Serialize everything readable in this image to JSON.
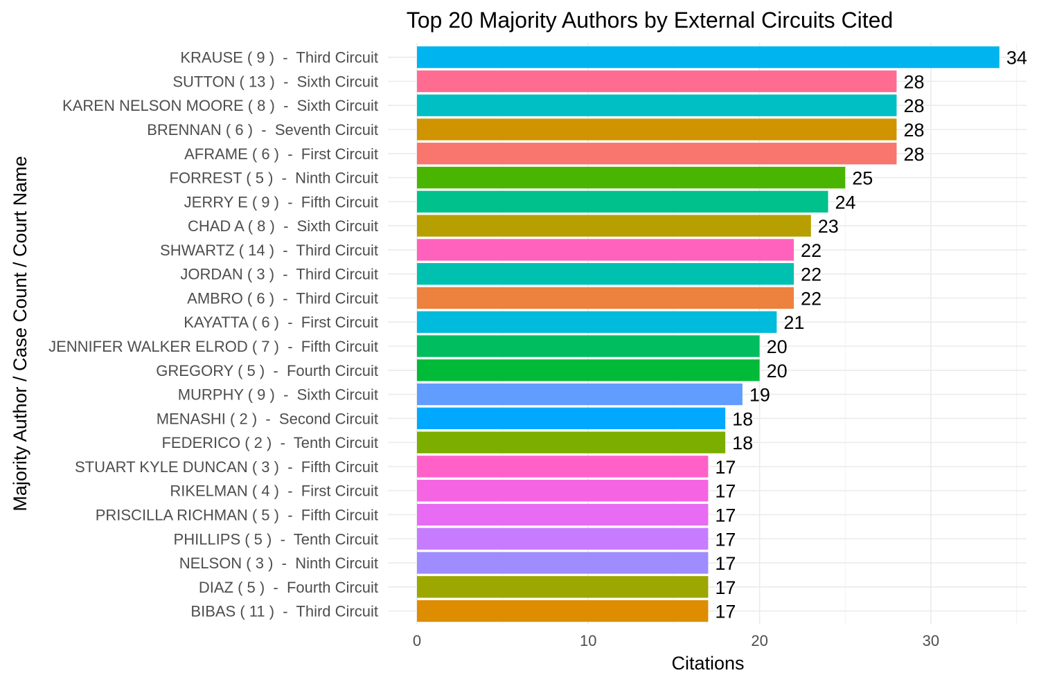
{
  "chart_data": {
    "type": "bar",
    "orientation": "horizontal",
    "title": "Top 20 Majority Authors by External Circuits Cited",
    "xlabel": "Citations",
    "ylabel": "Majority Author / Case Count / Court Name",
    "xlim": [
      0,
      35
    ],
    "xticks": [
      0,
      10,
      20,
      30
    ],
    "grid": true,
    "legend": "none",
    "categories": [
      "KRAUSE ( 9 )  -  Third Circuit",
      "SUTTON ( 13 )  -  Sixth Circuit",
      "KAREN NELSON MOORE ( 8 )  -  Sixth Circuit",
      "BRENNAN ( 6 )  -  Seventh Circuit",
      "AFRAME ( 6 )  -  First Circuit",
      "FORREST ( 5 )  -  Ninth Circuit",
      "JERRY E ( 9 )  -  Fifth Circuit",
      "CHAD A ( 8 )  -  Sixth Circuit",
      "SHWARTZ ( 14 )  -  Third Circuit",
      "JORDAN ( 3 )  -  Third Circuit",
      "AMBRO ( 6 )  -  Third Circuit",
      "KAYATTA ( 6 )  -  First Circuit",
      "JENNIFER WALKER ELROD ( 7 )  -  Fifth Circuit",
      "GREGORY ( 5 )  -  Fourth Circuit",
      "MURPHY ( 9 )  -  Sixth Circuit",
      "MENASHI ( 2 )  -  Second Circuit",
      "FEDERICO ( 2 )  -  Tenth Circuit",
      "STUART KYLE DUNCAN ( 3 )  -  Fifth Circuit",
      "RIKELMAN ( 4 )  -  First Circuit",
      "PRISCILLA RICHMAN ( 5 )  -  Fifth Circuit",
      "PHILLIPS ( 5 )  -  Tenth Circuit",
      "NELSON ( 3 )  -  Ninth Circuit",
      "DIAZ ( 5 )  -  Fourth Circuit",
      "BIBAS ( 11 )  -  Third Circuit"
    ],
    "values": [
      34,
      28,
      28,
      28,
      28,
      25,
      24,
      23,
      22,
      22,
      22,
      21,
      20,
      20,
      19,
      18,
      18,
      17,
      17,
      17,
      17,
      17,
      17,
      17
    ],
    "colors": [
      "#00B4EF",
      "#FF6C91",
      "#00BFC4",
      "#CF9400",
      "#F8766D",
      "#49B500",
      "#00C08B",
      "#B79F00",
      "#FF62BC",
      "#00C0AF",
      "#ED813E",
      "#00BBDB",
      "#00BD5F",
      "#00BA38",
      "#619CFF",
      "#00A9FF",
      "#7CAE00",
      "#FF61C9",
      "#F564E3",
      "#E76BF3",
      "#C77CFF",
      "#9F8CFF",
      "#9CA700",
      "#DE8C00"
    ]
  }
}
